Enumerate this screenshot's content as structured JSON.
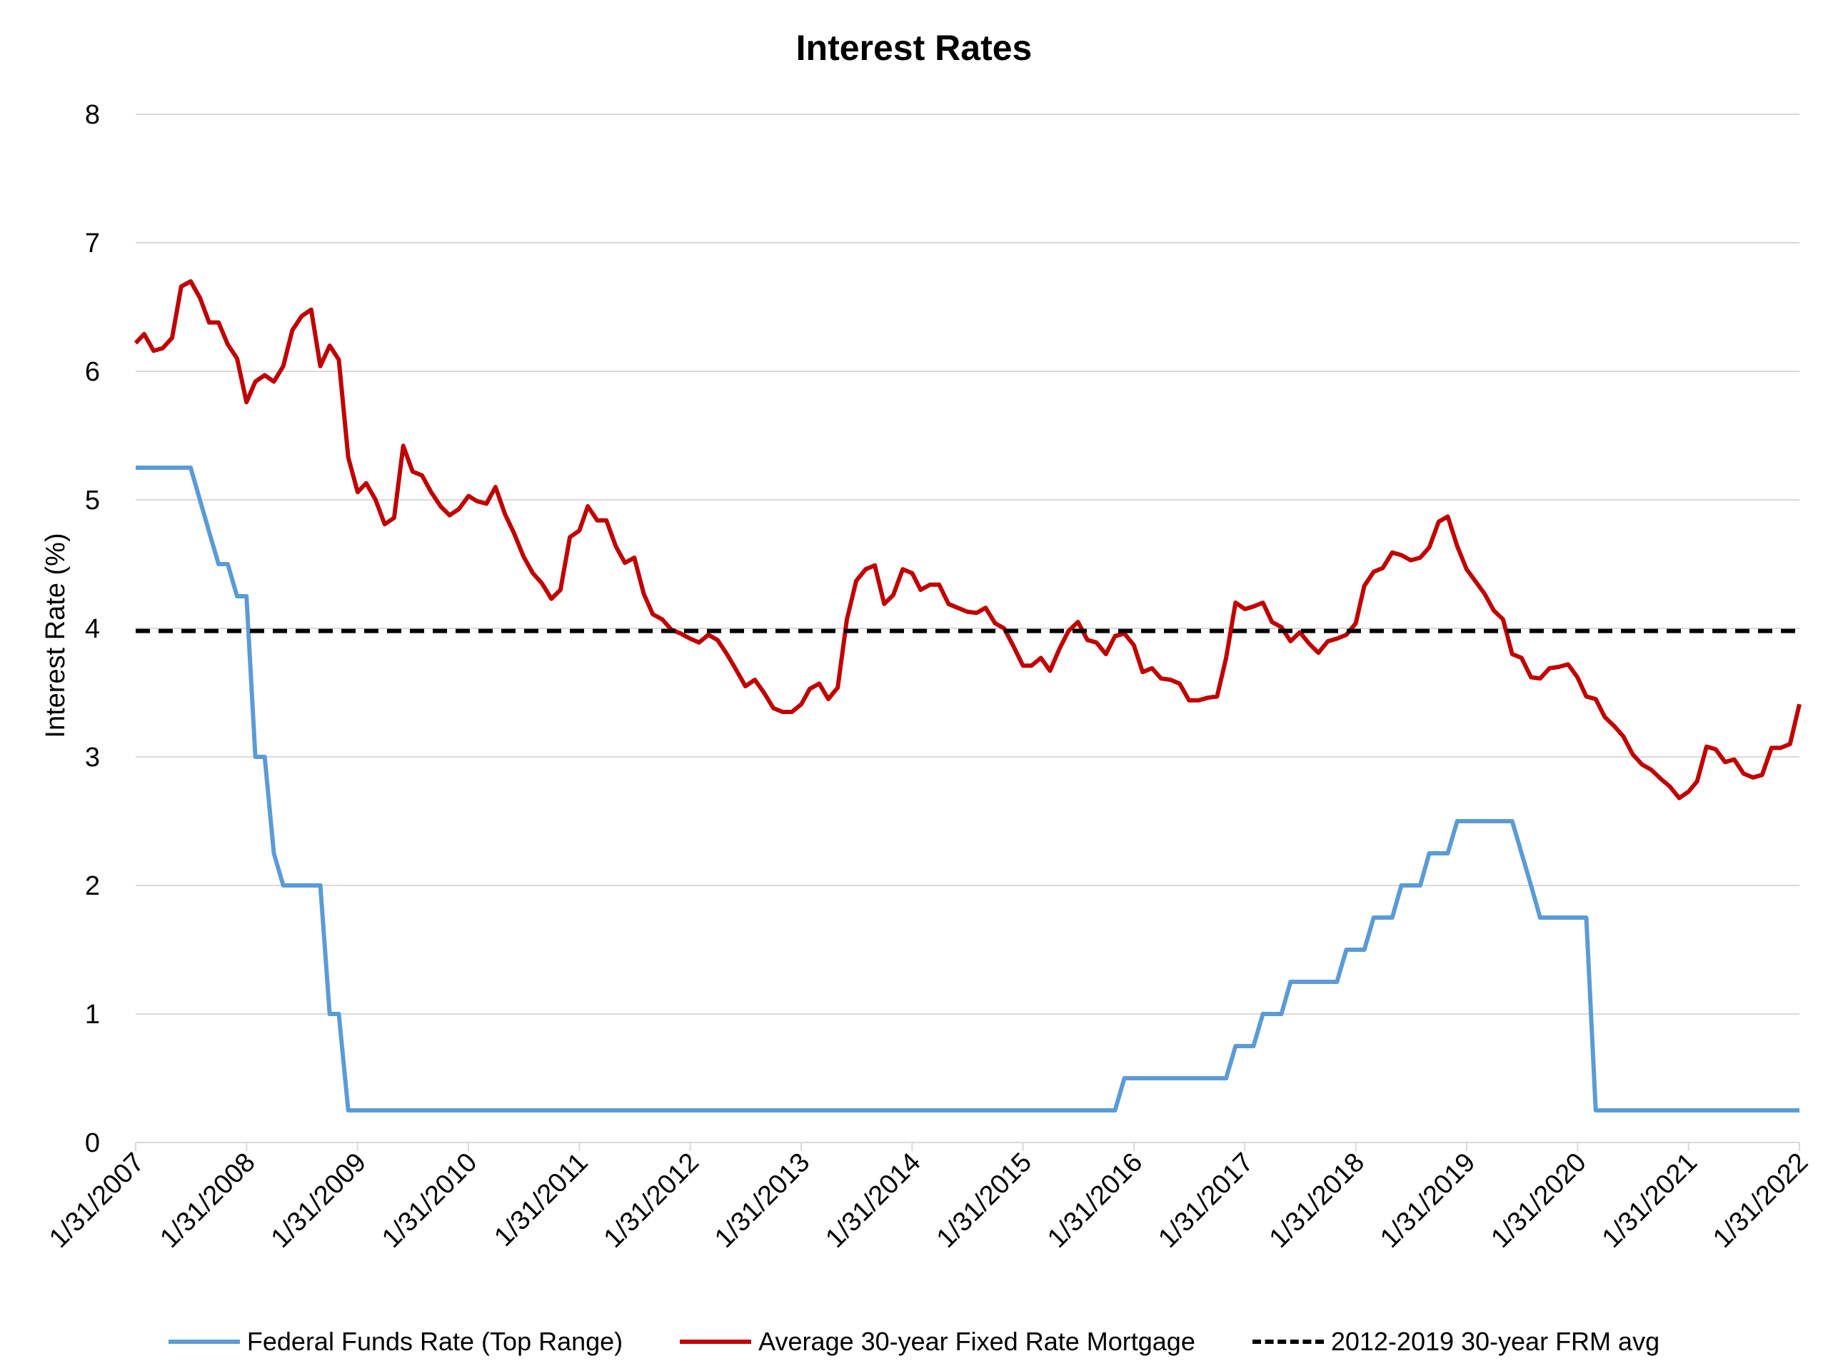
{
  "chart_data": {
    "type": "line",
    "title": "Interest Rates",
    "ylabel": "Interest Rate (%)",
    "xlabel": "",
    "ylim": [
      0,
      8
    ],
    "yticks": [
      "0",
      "1",
      "2",
      "3",
      "4",
      "5",
      "6",
      "7",
      "8"
    ],
    "xlim": [
      "2007-01-31",
      "2022-01-31"
    ],
    "xticks": [
      "1/31/2007",
      "1/31/2008",
      "1/31/2009",
      "1/31/2010",
      "1/31/2011",
      "1/31/2012",
      "1/31/2013",
      "1/31/2014",
      "1/31/2015",
      "1/31/2016",
      "1/31/2017",
      "1/31/2018",
      "1/31/2019",
      "1/31/2020",
      "1/31/2021",
      "1/31/2022"
    ],
    "grid": "horizontal",
    "legend_position": "bottom",
    "series": [
      {
        "name": "Federal Funds Rate (Top Range)",
        "color": "#5b9bd5",
        "style": "solid",
        "points": [
          [
            "2007-01-31",
            5.25
          ],
          [
            "2007-07-31",
            5.25
          ],
          [
            "2007-09-30",
            4.75
          ],
          [
            "2007-10-31",
            4.5
          ],
          [
            "2007-11-30",
            4.5
          ],
          [
            "2007-12-31",
            4.25
          ],
          [
            "2008-01-31",
            4.25
          ],
          [
            "2008-02-29",
            3.0
          ],
          [
            "2008-03-31",
            3.0
          ],
          [
            "2008-04-30",
            2.25
          ],
          [
            "2008-05-31",
            2.0
          ],
          [
            "2008-09-30",
            2.0
          ],
          [
            "2008-10-31",
            1.0
          ],
          [
            "2008-11-30",
            1.0
          ],
          [
            "2008-12-31",
            0.25
          ],
          [
            "2015-11-30",
            0.25
          ],
          [
            "2015-12-31",
            0.5
          ],
          [
            "2016-11-30",
            0.5
          ],
          [
            "2016-12-31",
            0.75
          ],
          [
            "2017-02-28",
            0.75
          ],
          [
            "2017-03-31",
            1.0
          ],
          [
            "2017-05-31",
            1.0
          ],
          [
            "2017-06-30",
            1.25
          ],
          [
            "2017-11-30",
            1.25
          ],
          [
            "2017-12-31",
            1.5
          ],
          [
            "2018-02-28",
            1.5
          ],
          [
            "2018-03-31",
            1.75
          ],
          [
            "2018-05-31",
            1.75
          ],
          [
            "2018-06-30",
            2.0
          ],
          [
            "2018-08-31",
            2.0
          ],
          [
            "2018-09-30",
            2.25
          ],
          [
            "2018-11-30",
            2.25
          ],
          [
            "2018-12-31",
            2.5
          ],
          [
            "2019-06-30",
            2.5
          ],
          [
            "2019-07-31",
            2.25
          ],
          [
            "2019-08-31",
            2.0
          ],
          [
            "2019-09-30",
            1.75
          ],
          [
            "2020-02-29",
            1.75
          ],
          [
            "2020-03-31",
            0.25
          ],
          [
            "2022-01-31",
            0.25
          ]
        ]
      },
      {
        "name": "Average 30-year Fixed Rate Mortgage",
        "color": "#c00000",
        "style": "solid",
        "points": [
          [
            "2007-01-31",
            6.22
          ],
          [
            "2007-02-28",
            6.29
          ],
          [
            "2007-03-31",
            6.16
          ],
          [
            "2007-04-30",
            6.18
          ],
          [
            "2007-05-31",
            6.26
          ],
          [
            "2007-06-30",
            6.66
          ],
          [
            "2007-07-31",
            6.7
          ],
          [
            "2007-08-31",
            6.57
          ],
          [
            "2007-09-30",
            6.38
          ],
          [
            "2007-10-31",
            6.38
          ],
          [
            "2007-11-30",
            6.21
          ],
          [
            "2007-12-31",
            6.1
          ],
          [
            "2008-01-31",
            5.76
          ],
          [
            "2008-02-29",
            5.92
          ],
          [
            "2008-03-31",
            5.97
          ],
          [
            "2008-04-30",
            5.92
          ],
          [
            "2008-05-31",
            6.04
          ],
          [
            "2008-06-30",
            6.32
          ],
          [
            "2008-07-31",
            6.43
          ],
          [
            "2008-08-31",
            6.48
          ],
          [
            "2008-09-30",
            6.04
          ],
          [
            "2008-10-31",
            6.2
          ],
          [
            "2008-11-30",
            6.09
          ],
          [
            "2008-12-31",
            5.33
          ],
          [
            "2009-01-31",
            5.06
          ],
          [
            "2009-02-28",
            5.13
          ],
          [
            "2009-03-31",
            5.0
          ],
          [
            "2009-04-30",
            4.81
          ],
          [
            "2009-05-31",
            4.86
          ],
          [
            "2009-06-30",
            5.42
          ],
          [
            "2009-07-31",
            5.22
          ],
          [
            "2009-08-31",
            5.19
          ],
          [
            "2009-09-30",
            5.06
          ],
          [
            "2009-10-31",
            4.95
          ],
          [
            "2009-11-30",
            4.88
          ],
          [
            "2009-12-31",
            4.93
          ],
          [
            "2010-01-31",
            5.03
          ],
          [
            "2010-02-28",
            4.99
          ],
          [
            "2010-03-31",
            4.97
          ],
          [
            "2010-04-30",
            5.1
          ],
          [
            "2010-05-31",
            4.89
          ],
          [
            "2010-06-30",
            4.74
          ],
          [
            "2010-07-31",
            4.56
          ],
          [
            "2010-08-31",
            4.43
          ],
          [
            "2010-09-30",
            4.35
          ],
          [
            "2010-10-31",
            4.23
          ],
          [
            "2010-11-30",
            4.3
          ],
          [
            "2010-12-31",
            4.71
          ],
          [
            "2011-01-31",
            4.76
          ],
          [
            "2011-02-28",
            4.95
          ],
          [
            "2011-03-31",
            4.84
          ],
          [
            "2011-04-30",
            4.84
          ],
          [
            "2011-05-31",
            4.64
          ],
          [
            "2011-06-30",
            4.51
          ],
          [
            "2011-07-31",
            4.55
          ],
          [
            "2011-08-31",
            4.27
          ],
          [
            "2011-09-30",
            4.11
          ],
          [
            "2011-10-31",
            4.07
          ],
          [
            "2011-11-30",
            3.99
          ],
          [
            "2011-12-31",
            3.96
          ],
          [
            "2012-01-31",
            3.92
          ],
          [
            "2012-02-29",
            3.89
          ],
          [
            "2012-03-31",
            3.95
          ],
          [
            "2012-04-30",
            3.91
          ],
          [
            "2012-05-31",
            3.8
          ],
          [
            "2012-06-30",
            3.68
          ],
          [
            "2012-07-31",
            3.55
          ],
          [
            "2012-08-31",
            3.6
          ],
          [
            "2012-09-30",
            3.5
          ],
          [
            "2012-10-31",
            3.38
          ],
          [
            "2012-11-30",
            3.35
          ],
          [
            "2012-12-31",
            3.35
          ],
          [
            "2013-01-31",
            3.41
          ],
          [
            "2013-02-28",
            3.53
          ],
          [
            "2013-03-31",
            3.57
          ],
          [
            "2013-04-30",
            3.45
          ],
          [
            "2013-05-31",
            3.54
          ],
          [
            "2013-06-30",
            4.07
          ],
          [
            "2013-07-31",
            4.37
          ],
          [
            "2013-08-31",
            4.46
          ],
          [
            "2013-09-30",
            4.49
          ],
          [
            "2013-10-31",
            4.19
          ],
          [
            "2013-11-30",
            4.26
          ],
          [
            "2013-12-31",
            4.46
          ],
          [
            "2014-01-31",
            4.43
          ],
          [
            "2014-02-28",
            4.3
          ],
          [
            "2014-03-31",
            4.34
          ],
          [
            "2014-04-30",
            4.34
          ],
          [
            "2014-05-31",
            4.19
          ],
          [
            "2014-06-30",
            4.16
          ],
          [
            "2014-07-31",
            4.13
          ],
          [
            "2014-08-31",
            4.12
          ],
          [
            "2014-09-30",
            4.16
          ],
          [
            "2014-10-31",
            4.04
          ],
          [
            "2014-11-30",
            4.0
          ],
          [
            "2014-12-31",
            3.86
          ],
          [
            "2015-01-31",
            3.71
          ],
          [
            "2015-02-28",
            3.71
          ],
          [
            "2015-03-31",
            3.77
          ],
          [
            "2015-04-30",
            3.67
          ],
          [
            "2015-05-31",
            3.84
          ],
          [
            "2015-06-30",
            3.98
          ],
          [
            "2015-07-31",
            4.05
          ],
          [
            "2015-08-31",
            3.91
          ],
          [
            "2015-09-30",
            3.89
          ],
          [
            "2015-10-31",
            3.8
          ],
          [
            "2015-11-30",
            3.94
          ],
          [
            "2015-12-31",
            3.96
          ],
          [
            "2016-01-31",
            3.87
          ],
          [
            "2016-02-29",
            3.66
          ],
          [
            "2016-03-31",
            3.69
          ],
          [
            "2016-04-30",
            3.61
          ],
          [
            "2016-05-31",
            3.6
          ],
          [
            "2016-06-30",
            3.57
          ],
          [
            "2016-07-31",
            3.44
          ],
          [
            "2016-08-31",
            3.44
          ],
          [
            "2016-09-30",
            3.46
          ],
          [
            "2016-10-31",
            3.47
          ],
          [
            "2016-11-30",
            3.77
          ],
          [
            "2016-12-31",
            4.2
          ],
          [
            "2017-01-31",
            4.15
          ],
          [
            "2017-02-28",
            4.17
          ],
          [
            "2017-03-31",
            4.2
          ],
          [
            "2017-04-30",
            4.05
          ],
          [
            "2017-05-31",
            4.01
          ],
          [
            "2017-06-30",
            3.9
          ],
          [
            "2017-07-31",
            3.97
          ],
          [
            "2017-08-31",
            3.88
          ],
          [
            "2017-09-30",
            3.81
          ],
          [
            "2017-10-31",
            3.9
          ],
          [
            "2017-11-30",
            3.92
          ],
          [
            "2017-12-31",
            3.95
          ],
          [
            "2018-01-31",
            4.04
          ],
          [
            "2018-02-28",
            4.33
          ],
          [
            "2018-03-31",
            4.44
          ],
          [
            "2018-04-30",
            4.47
          ],
          [
            "2018-05-31",
            4.59
          ],
          [
            "2018-06-30",
            4.57
          ],
          [
            "2018-07-31",
            4.53
          ],
          [
            "2018-08-31",
            4.55
          ],
          [
            "2018-09-30",
            4.63
          ],
          [
            "2018-10-31",
            4.83
          ],
          [
            "2018-11-30",
            4.87
          ],
          [
            "2018-12-31",
            4.64
          ],
          [
            "2019-01-31",
            4.46
          ],
          [
            "2019-02-28",
            4.37
          ],
          [
            "2019-03-31",
            4.27
          ],
          [
            "2019-04-30",
            4.14
          ],
          [
            "2019-05-31",
            4.07
          ],
          [
            "2019-06-30",
            3.8
          ],
          [
            "2019-07-31",
            3.77
          ],
          [
            "2019-08-31",
            3.62
          ],
          [
            "2019-09-30",
            3.61
          ],
          [
            "2019-10-31",
            3.69
          ],
          [
            "2019-11-30",
            3.7
          ],
          [
            "2019-12-31",
            3.72
          ],
          [
            "2020-01-31",
            3.62
          ],
          [
            "2020-02-29",
            3.47
          ],
          [
            "2020-03-31",
            3.45
          ],
          [
            "2020-04-30",
            3.31
          ],
          [
            "2020-05-31",
            3.24
          ],
          [
            "2020-06-30",
            3.16
          ],
          [
            "2020-07-31",
            3.02
          ],
          [
            "2020-08-31",
            2.94
          ],
          [
            "2020-09-30",
            2.9
          ],
          [
            "2020-10-31",
            2.83
          ],
          [
            "2020-11-30",
            2.77
          ],
          [
            "2020-12-31",
            2.68
          ],
          [
            "2021-01-31",
            2.73
          ],
          [
            "2021-02-28",
            2.81
          ],
          [
            "2021-03-31",
            3.08
          ],
          [
            "2021-04-30",
            3.06
          ],
          [
            "2021-05-31",
            2.96
          ],
          [
            "2021-06-30",
            2.98
          ],
          [
            "2021-07-31",
            2.87
          ],
          [
            "2021-08-31",
            2.84
          ],
          [
            "2021-09-30",
            2.86
          ],
          [
            "2021-10-31",
            3.07
          ],
          [
            "2021-11-30",
            3.07
          ],
          [
            "2021-12-31",
            3.1
          ],
          [
            "2022-01-31",
            3.41
          ]
        ]
      },
      {
        "name": "2012-2019 30-year FRM avg",
        "color": "#000000",
        "style": "dashed",
        "points": [
          [
            "2007-01-31",
            3.98
          ],
          [
            "2022-01-31",
            3.98
          ]
        ]
      }
    ]
  }
}
